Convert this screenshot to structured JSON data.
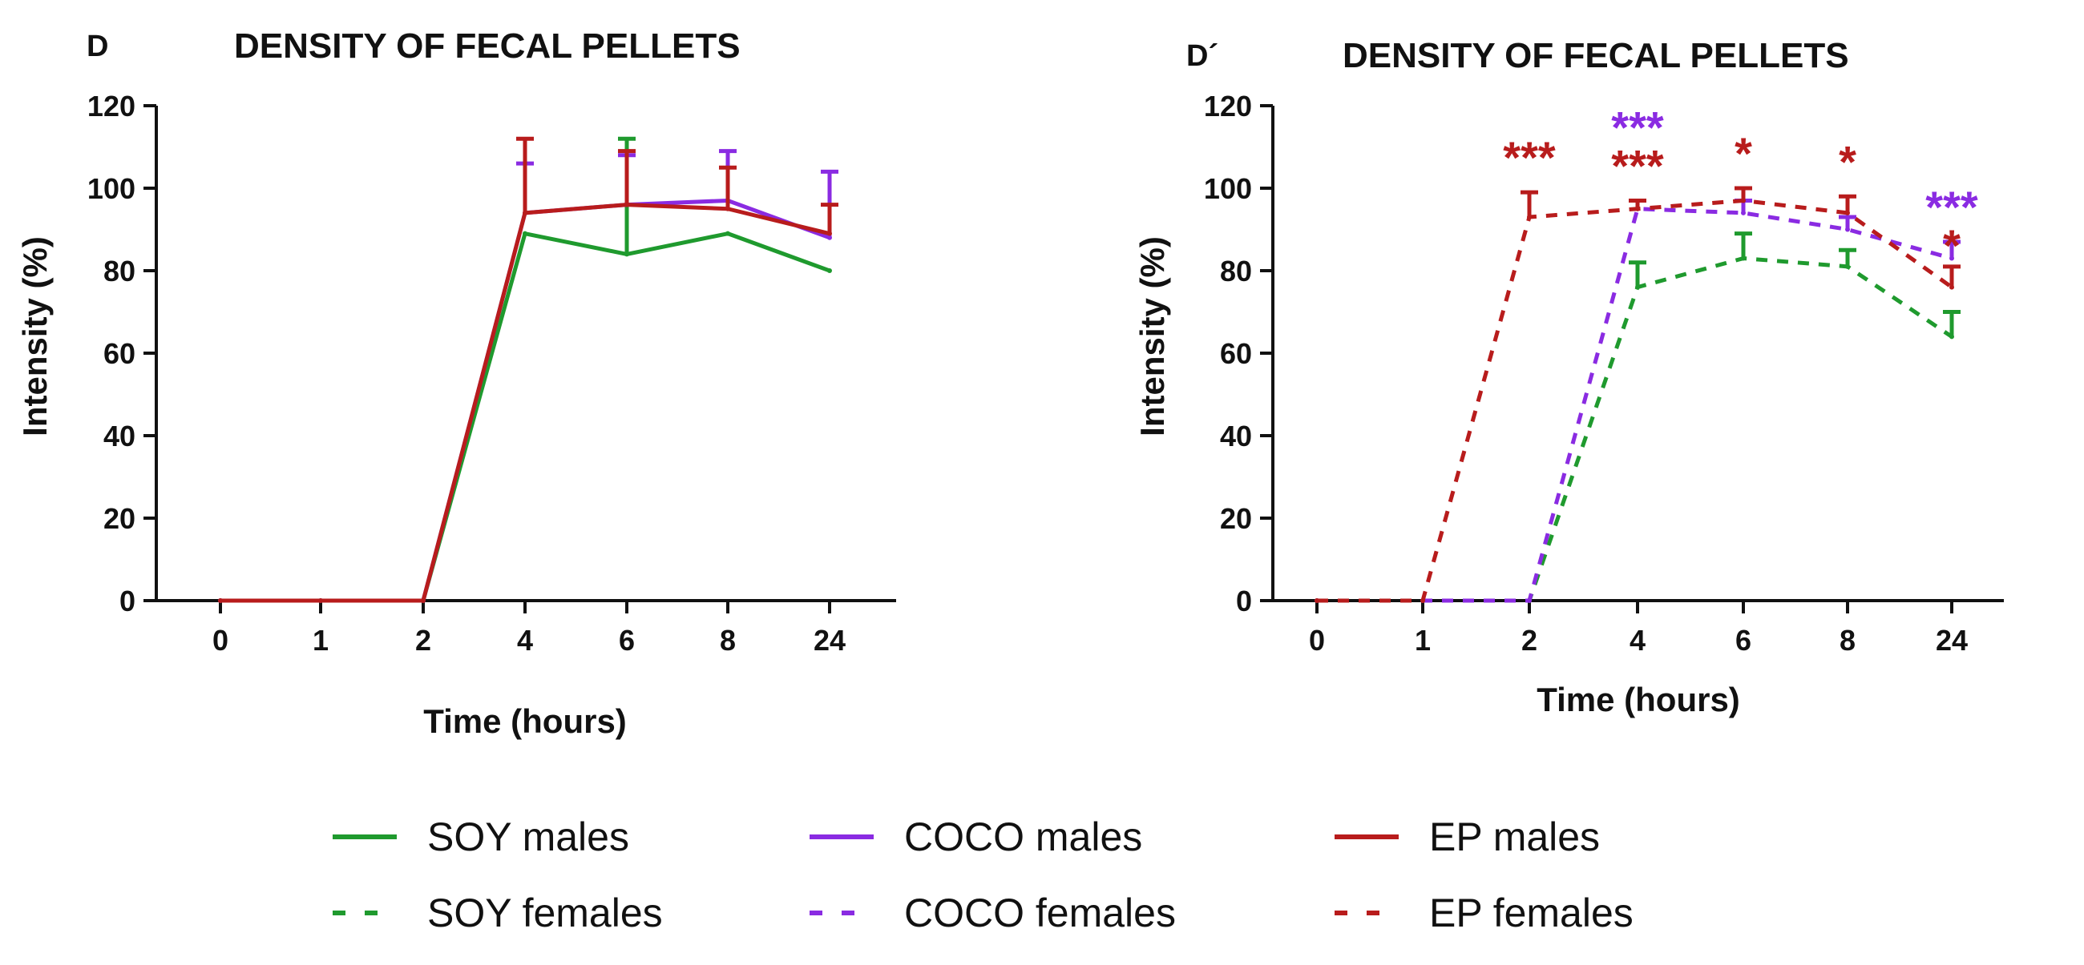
{
  "legend": [
    {
      "key": "soy_m",
      "text": "SOY  males",
      "color": "#1f9a2e",
      "style": "solid"
    },
    {
      "key": "coco_m",
      "text": "COCO  males",
      "color": "#8a2be2",
      "style": "solid"
    },
    {
      "key": "ep_m",
      "text": "EP  males",
      "color": "#b81c1c",
      "style": "solid"
    },
    {
      "key": "soy_f",
      "text": "SOY  females",
      "color": "#1f9a2e",
      "style": "dashed"
    },
    {
      "key": "coco_f",
      "text": "COCO  females",
      "color": "#8a2be2",
      "style": "dashed"
    },
    {
      "key": "ep_f",
      "text": "EP  females",
      "color": "#b81c1c",
      "style": "dashed"
    }
  ],
  "chart_data": [
    {
      "type": "line",
      "panel_label": "D",
      "title": "DENSITY OF FECAL PELLETS",
      "xlabel": "Time (hours)",
      "ylabel": "Intensity (%)",
      "categories": [
        "0",
        "1",
        "2",
        "4",
        "6",
        "8",
        "24"
      ],
      "ylim": [
        0,
        120
      ],
      "yticks": [
        0,
        20,
        40,
        60,
        80,
        100,
        120
      ],
      "yticklabels": [
        "0",
        "20",
        "40",
        "60",
        "80",
        "100",
        "120"
      ],
      "series": [
        {
          "name": "SOY males",
          "color": "#1f9a2e",
          "style": "solid",
          "values": [
            0,
            0,
            0,
            89,
            84,
            89,
            80
          ],
          "errors": [
            0,
            0,
            0,
            0,
            28,
            0,
            0
          ]
        },
        {
          "name": "COCO males",
          "color": "#8a2be2",
          "style": "solid",
          "values": [
            0,
            0,
            0,
            94,
            96,
            97,
            88
          ],
          "errors": [
            0,
            0,
            0,
            12,
            12,
            12,
            16
          ]
        },
        {
          "name": "EP males",
          "color": "#b81c1c",
          "style": "solid",
          "values": [
            0,
            0,
            0,
            94,
            96,
            95,
            89
          ],
          "errors": [
            0,
            0,
            0,
            18,
            13,
            10,
            7
          ]
        }
      ],
      "annotations": []
    },
    {
      "type": "line",
      "panel_label": "D´",
      "title": "DENSITY OF FECAL PELLETS",
      "xlabel": "Time (hours)",
      "ylabel": "Intensity (%)",
      "categories": [
        "0",
        "1",
        "2",
        "4",
        "6",
        "8",
        "24"
      ],
      "ylim": [
        0,
        120
      ],
      "yticks": [
        0,
        20,
        40,
        60,
        80,
        100,
        120
      ],
      "yticklabels": [
        "0",
        "20",
        "40",
        "60",
        "80",
        "100",
        "120"
      ],
      "series": [
        {
          "name": "SOY females",
          "color": "#1f9a2e",
          "style": "dashed",
          "values": [
            0,
            0,
            0,
            76,
            83,
            81,
            64
          ],
          "errors": [
            0,
            0,
            0,
            6,
            6,
            4,
            6
          ]
        },
        {
          "name": "COCO females",
          "color": "#8a2be2",
          "style": "dashed",
          "values": [
            0,
            0,
            0,
            95,
            94,
            90,
            83
          ],
          "errors": [
            0,
            0,
            0,
            2,
            3,
            3,
            4
          ]
        },
        {
          "name": "EP females",
          "color": "#b81c1c",
          "style": "dashed",
          "values": [
            0,
            0,
            93,
            95,
            97,
            94,
            76
          ],
          "errors": [
            0,
            0,
            6,
            2,
            3,
            4,
            5
          ]
        }
      ],
      "annotations": [
        {
          "category": "2",
          "text": "***",
          "color": "#b81c1c",
          "level": 0
        },
        {
          "category": "4",
          "text": "***",
          "color": "#b81c1c",
          "level": 0
        },
        {
          "category": "4",
          "text": "***",
          "color": "#8a2be2",
          "level": 1
        },
        {
          "category": "6",
          "text": "*",
          "color": "#b81c1c",
          "level": 0
        },
        {
          "category": "8",
          "text": "*",
          "color": "#b81c1c",
          "level": 0
        },
        {
          "category": "24",
          "text": "*",
          "color": "#b81c1c",
          "level": -1
        },
        {
          "category": "24",
          "text": "***",
          "color": "#8a2be2",
          "level": 0
        }
      ]
    }
  ]
}
